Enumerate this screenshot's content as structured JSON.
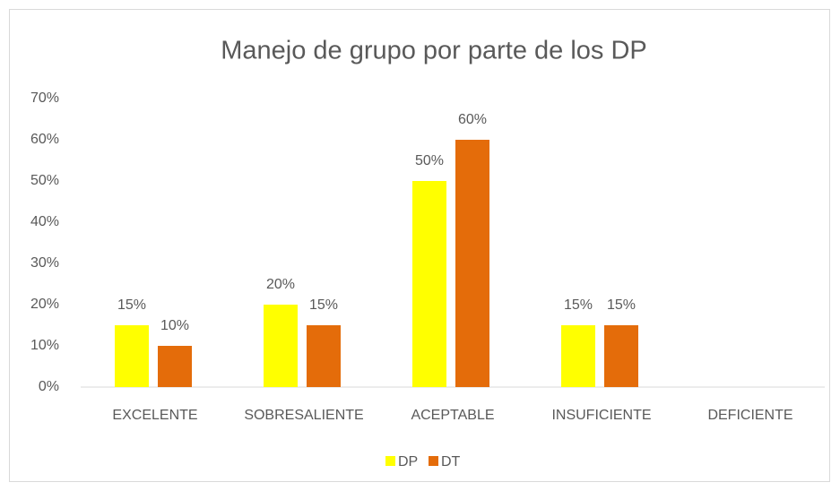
{
  "chart_data": {
    "type": "bar",
    "title": "Manejo de grupo por parte de los DP",
    "categories": [
      "EXCELENTE",
      "SOBRESALIENTE",
      "ACEPTABLE",
      "INSUFICIENTE",
      "DEFICIENTE"
    ],
    "series": [
      {
        "name": "DP",
        "color": "#ffff00",
        "values": [
          15,
          20,
          50,
          15,
          null
        ],
        "value_labels": [
          "15%",
          "20%",
          "50%",
          "15%",
          null
        ]
      },
      {
        "name": "DT",
        "color": "#e46c0a",
        "values": [
          10,
          15,
          60,
          15,
          null
        ],
        "value_labels": [
          "10%",
          "15%",
          "60%",
          "15%",
          null
        ]
      }
    ],
    "ylim": [
      0,
      70
    ],
    "yticks": [
      {
        "value": 0,
        "label": "0%"
      },
      {
        "value": 10,
        "label": "10%"
      },
      {
        "value": 20,
        "label": "20%"
      },
      {
        "value": 30,
        "label": "30%"
      },
      {
        "value": 40,
        "label": "40%"
      },
      {
        "value": 50,
        "label": "50%"
      },
      {
        "value": 60,
        "label": "60%"
      },
      {
        "value": 70,
        "label": "70%"
      }
    ],
    "grid": false,
    "legend": "bottom"
  }
}
